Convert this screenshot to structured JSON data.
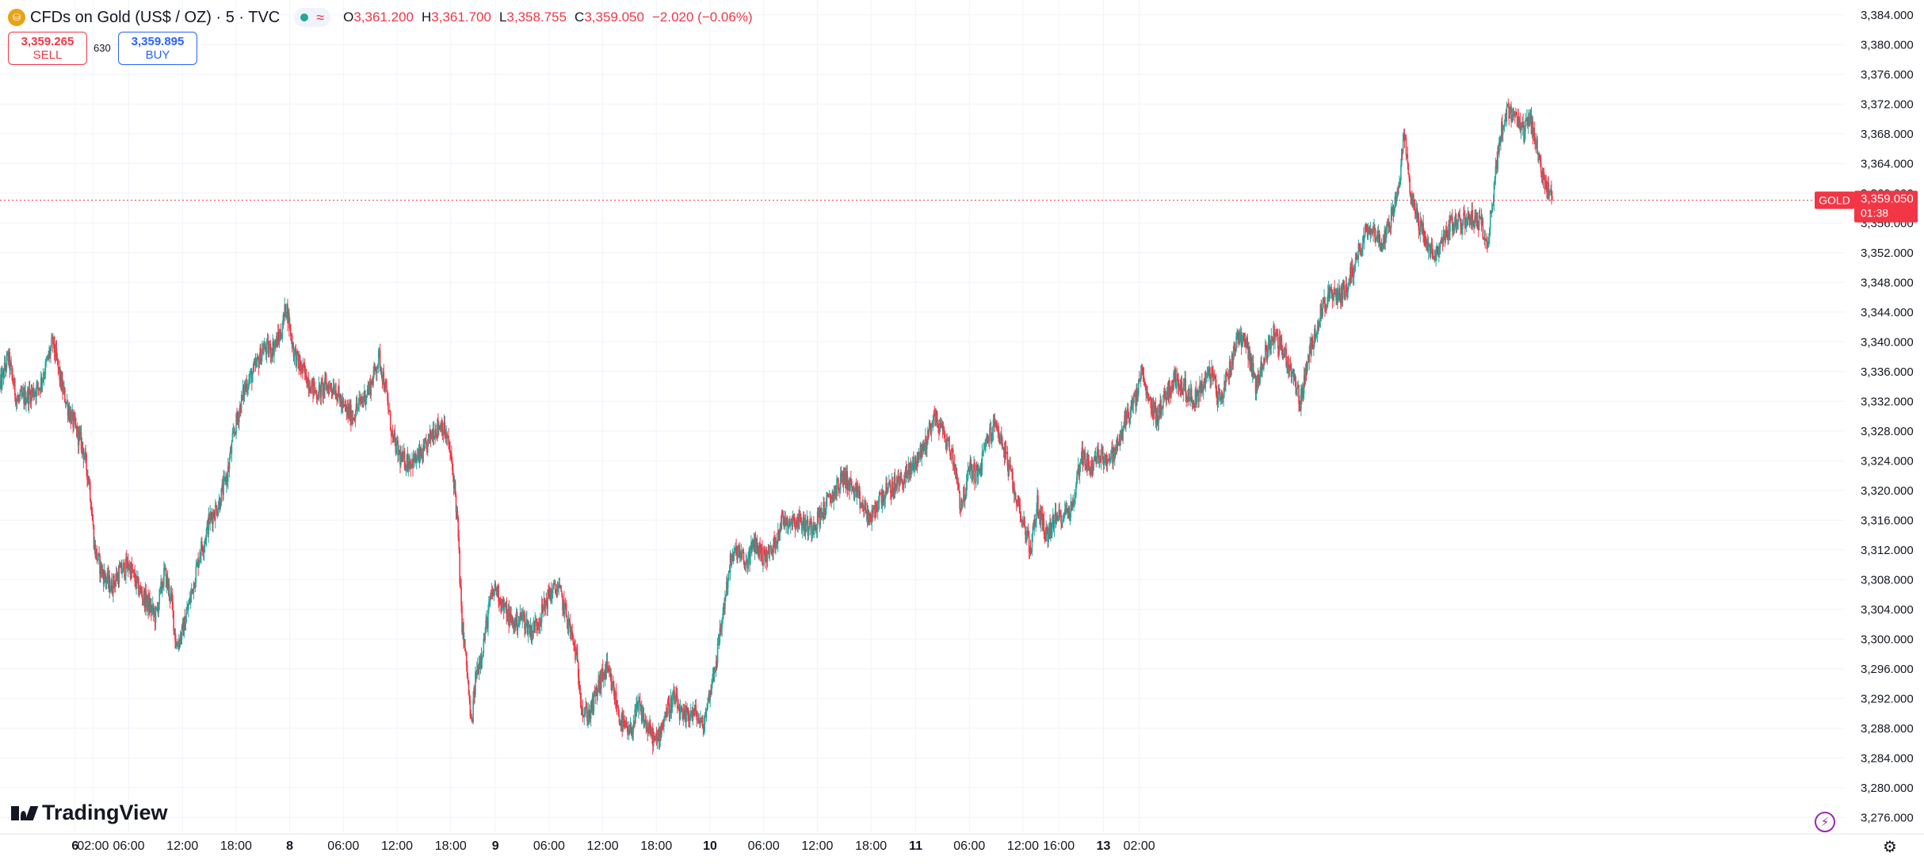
{
  "legend": {
    "symbol_icon": "gold-coin-icon",
    "title": "CFDs on Gold (US$ / OZ) · 5 · TVC",
    "market_status_icon": "market-open-dot-icon",
    "indicator_icon": "wave-icon",
    "open_label": "O",
    "open_value": "3,361.200",
    "high_label": "H",
    "high_value": "3,361.700",
    "low_label": "L",
    "low_value": "3,358.755",
    "close_label": "C",
    "close_value": "3,359.050",
    "change": "−2.020 (−0.06%)"
  },
  "trade": {
    "sell_price": "3,359.265",
    "sell_label": "SELL",
    "spread": "630",
    "buy_price": "3,359.895",
    "buy_label": "BUY"
  },
  "price_tag": {
    "symbol": "GOLD",
    "price": "3,359.050",
    "countdown": "01:38",
    "color": "#f23645"
  },
  "colors": {
    "up": "#26a69a",
    "down": "#f23645",
    "grid": "#f0f3fa"
  },
  "branding": {
    "logo_text": "TradingView"
  },
  "icons": {
    "bolt": "lightning-icon",
    "settings": "settings-icon"
  },
  "chart_data": {
    "type": "candlestick",
    "interval": "5 minutes",
    "symbol": "CFDs on Gold (US$ / OZ)",
    "y_axis_side": "right",
    "ylim": [
      3274,
      3386
    ],
    "yticks": [
      "3,276.000",
      "3,280.000",
      "3,284.000",
      "3,288.000",
      "3,292.000",
      "3,296.000",
      "3,300.000",
      "3,304.000",
      "3,308.000",
      "3,312.000",
      "3,316.000",
      "3,320.000",
      "3,324.000",
      "3,328.000",
      "3,332.000",
      "3,336.000",
      "3,340.000",
      "3,344.000",
      "3,348.000",
      "3,352.000",
      "3,356.000",
      "3,360.000",
      "3,364.000",
      "3,368.000",
      "3,372.000",
      "3,376.000",
      "3,380.000",
      "3,384.000"
    ],
    "x_range_hours": [
      -8.4,
      197.9
    ],
    "xticks": [
      {
        "label": "6",
        "hours": 0,
        "bold": true
      },
      {
        "label": "02:00",
        "hours": 2
      },
      {
        "label": "06:00",
        "hours": 6
      },
      {
        "label": "12:00",
        "hours": 12
      },
      {
        "label": "18:00",
        "hours": 18
      },
      {
        "label": "8",
        "hours": 24,
        "bold": true
      },
      {
        "label": "06:00",
        "hours": 30
      },
      {
        "label": "12:00",
        "hours": 36
      },
      {
        "label": "18:00",
        "hours": 42
      },
      {
        "label": "9",
        "hours": 47,
        "bold": true
      },
      {
        "label": "06:00",
        "hours": 53
      },
      {
        "label": "12:00",
        "hours": 59
      },
      {
        "label": "18:00",
        "hours": 65
      },
      {
        "label": "10",
        "hours": 71,
        "bold": true
      },
      {
        "label": "06:00",
        "hours": 77
      },
      {
        "label": "12:00",
        "hours": 83
      },
      {
        "label": "18:00",
        "hours": 89
      },
      {
        "label": "11",
        "hours": 94,
        "bold": true
      },
      {
        "label": "06:00",
        "hours": 100
      },
      {
        "label": "12:00",
        "hours": 106
      },
      {
        "label": "16:00",
        "hours": 110
      },
      {
        "label": "13",
        "hours": 115,
        "bold": true
      },
      {
        "label": "02:00",
        "hours": 119
      }
    ],
    "price_path": [
      [
        -8.4,
        3334
      ],
      [
        -7.5,
        3338
      ],
      [
        -6.5,
        3332
      ],
      [
        -5,
        3333
      ],
      [
        -4,
        3334
      ],
      [
        -3.2,
        3337
      ],
      [
        -2.5,
        3340
      ],
      [
        -1.5,
        3334
      ],
      [
        -0.5,
        3330
      ],
      [
        0.8,
        3326
      ],
      [
        1.6,
        3321
      ],
      [
        2.2,
        3312
      ],
      [
        3,
        3309
      ],
      [
        4,
        3307
      ],
      [
        5,
        3309
      ],
      [
        6,
        3310
      ],
      [
        7,
        3307
      ],
      [
        8,
        3305
      ],
      [
        9,
        3303
      ],
      [
        10,
        3309
      ],
      [
        10.8,
        3305
      ],
      [
        11.3,
        3299
      ],
      [
        12,
        3301
      ],
      [
        12.8,
        3305
      ],
      [
        13.5,
        3309
      ],
      [
        14,
        3312
      ],
      [
        14.4,
        3313
      ],
      [
        15,
        3316
      ],
      [
        16,
        3318
      ],
      [
        17,
        3322
      ],
      [
        17.8,
        3328
      ],
      [
        19,
        3334
      ],
      [
        20,
        3336
      ],
      [
        21,
        3339
      ],
      [
        22,
        3339
      ],
      [
        23,
        3341
      ],
      [
        23.6,
        3345
      ],
      [
        24.4,
        3339
      ],
      [
        25,
        3337
      ],
      [
        26,
        3335
      ],
      [
        27,
        3333
      ],
      [
        28,
        3334
      ],
      [
        29,
        3334
      ],
      [
        30,
        3331
      ],
      [
        31,
        3330
      ],
      [
        32,
        3332
      ],
      [
        33,
        3334
      ],
      [
        34,
        3338
      ],
      [
        34.8,
        3333
      ],
      [
        35.5,
        3327
      ],
      [
        36.5,
        3324
      ],
      [
        38,
        3324
      ],
      [
        39,
        3325
      ],
      [
        40,
        3328
      ],
      [
        41,
        3329
      ],
      [
        41.8,
        3326
      ],
      [
        42.4,
        3321
      ],
      [
        42.8,
        3315
      ],
      [
        43.2,
        3303
      ],
      [
        43.8,
        3296
      ],
      [
        44.3,
        3288
      ],
      [
        44.8,
        3295
      ],
      [
        45.6,
        3299
      ],
      [
        46.4,
        3305
      ],
      [
        47,
        3307
      ],
      [
        48,
        3304
      ],
      [
        49,
        3302
      ],
      [
        50,
        3303
      ],
      [
        51,
        3301
      ],
      [
        52,
        3303
      ],
      [
        53,
        3306
      ],
      [
        54,
        3307
      ],
      [
        55,
        3303
      ],
      [
        56,
        3298
      ],
      [
        56.8,
        3290
      ],
      [
        57.6,
        3290
      ],
      [
        58.6,
        3294
      ],
      [
        59.4,
        3296
      ],
      [
        60.2,
        3293
      ],
      [
        61,
        3289
      ],
      [
        62,
        3287
      ],
      [
        63,
        3291
      ],
      [
        64,
        3288
      ],
      [
        65,
        3286
      ],
      [
        66,
        3290
      ],
      [
        67,
        3292
      ],
      [
        68,
        3289
      ],
      [
        68.6,
        3290
      ],
      [
        69.4,
        3290
      ],
      [
        70.2,
        3288
      ],
      [
        71,
        3293
      ],
      [
        71.8,
        3298
      ],
      [
        72.5,
        3304
      ],
      [
        73.2,
        3310
      ],
      [
        74,
        3312
      ],
      [
        75,
        3310
      ],
      [
        76,
        3313
      ],
      [
        77,
        3311
      ],
      [
        78,
        3312
      ],
      [
        79,
        3316
      ],
      [
        80,
        3316
      ],
      [
        81,
        3316
      ],
      [
        82,
        3315
      ],
      [
        83,
        3316
      ],
      [
        84,
        3318
      ],
      [
        85,
        3320
      ],
      [
        86,
        3322
      ],
      [
        87,
        3320
      ],
      [
        88,
        3318
      ],
      [
        89,
        3316
      ],
      [
        90,
        3319
      ],
      [
        91,
        3320
      ],
      [
        92,
        3321
      ],
      [
        93,
        3322
      ],
      [
        94,
        3324
      ],
      [
        95,
        3326
      ],
      [
        96,
        3330
      ],
      [
        97,
        3328
      ],
      [
        98,
        3325
      ],
      [
        98.6,
        3322
      ],
      [
        99,
        3318
      ],
      [
        99.6,
        3320
      ],
      [
        100,
        3323
      ],
      [
        101,
        3322
      ],
      [
        102,
        3327
      ],
      [
        103,
        3329
      ],
      [
        104,
        3325
      ],
      [
        105,
        3320
      ],
      [
        106,
        3316
      ],
      [
        106.8,
        3312
      ],
      [
        107.6,
        3318
      ],
      [
        108.6,
        3314
      ],
      [
        109.6,
        3316
      ],
      [
        110.6,
        3317
      ],
      [
        111.6,
        3318
      ],
      [
        112.5,
        3325
      ],
      [
        113.6,
        3323
      ],
      [
        114.6,
        3325
      ],
      [
        115.6,
        3324
      ],
      [
        116.6,
        3326
      ],
      [
        117.6,
        3330
      ],
      [
        118.6,
        3332
      ],
      [
        119.2,
        3336
      ],
      [
        120,
        3332
      ],
      [
        121,
        3330
      ],
      [
        122,
        3333
      ],
      [
        123,
        3335
      ],
      [
        124,
        3334
      ],
      [
        125,
        3332
      ],
      [
        126,
        3334
      ],
      [
        127,
        3336
      ],
      [
        128,
        3332
      ],
      [
        129,
        3336
      ],
      [
        130,
        3341
      ],
      [
        131,
        3340
      ],
      [
        132,
        3334
      ],
      [
        133,
        3338
      ],
      [
        134,
        3341
      ],
      [
        135,
        3339
      ],
      [
        136,
        3336
      ],
      [
        137,
        3332
      ],
      [
        138,
        3338
      ],
      [
        139,
        3343
      ],
      [
        140,
        3346
      ],
      [
        141,
        3346
      ],
      [
        142,
        3347
      ],
      [
        143,
        3350
      ],
      [
        144,
        3354
      ],
      [
        145,
        3356
      ],
      [
        146,
        3353
      ],
      [
        147,
        3356
      ],
      [
        148,
        3360
      ],
      [
        148.6,
        3368
      ],
      [
        149.4,
        3360
      ],
      [
        150.2,
        3356
      ],
      [
        151,
        3354
      ],
      [
        152,
        3351
      ],
      [
        153,
        3354
      ],
      [
        154,
        3356
      ],
      [
        155,
        3356
      ],
      [
        156,
        3357
      ],
      [
        157,
        3356
      ],
      [
        158,
        3354
      ],
      [
        158.6,
        3360
      ],
      [
        159.4,
        3368
      ],
      [
        160.2,
        3371
      ],
      [
        161,
        3370
      ],
      [
        162,
        3368
      ],
      [
        162.6,
        3370
      ],
      [
        163.2,
        3368
      ],
      [
        163.8,
        3364
      ],
      [
        164.3,
        3361
      ],
      [
        164.8,
        3360
      ],
      [
        165.2,
        3359.05
      ]
    ]
  }
}
